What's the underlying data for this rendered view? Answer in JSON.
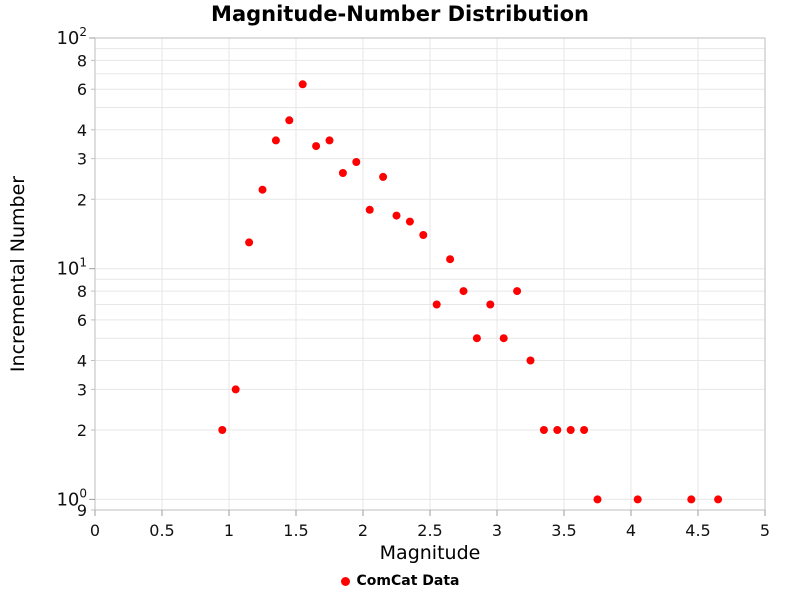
{
  "chart_data": {
    "type": "scatter",
    "title": "Magnitude-Number Distribution",
    "xlabel": "Magnitude",
    "ylabel": "Incremental Number",
    "legend": [
      {
        "label": "ComCat Data",
        "color": "#ff0000"
      }
    ],
    "legend_position": "bottom-center",
    "grid": true,
    "x_range": [
      0,
      5
    ],
    "y_range": [
      0.9,
      100
    ],
    "y_scale": "log",
    "x_ticks": [
      0,
      0.5,
      1,
      1.5,
      2,
      2.5,
      3,
      3.5,
      4,
      4.5,
      5
    ],
    "x_tick_labels": [
      "0",
      "0.5",
      "1",
      "1.5",
      "2",
      "2.5",
      "3",
      "3.5",
      "4",
      "4.5",
      "5"
    ],
    "y_major_ticks": [
      1,
      10,
      100
    ],
    "y_major_exponents": [
      "0",
      "1",
      "2"
    ],
    "y_minor_tick_values": [
      0.9,
      2,
      3,
      4,
      6,
      8,
      20,
      30,
      40,
      60,
      80
    ],
    "y_minor_tick_labels": [
      "9",
      "2",
      "3",
      "4",
      "6",
      "8",
      "2",
      "3",
      "4",
      "6",
      "8"
    ],
    "y_grid_ticks": [
      0.9,
      1,
      2,
      3,
      4,
      5,
      6,
      7,
      8,
      9,
      10,
      20,
      30,
      40,
      50,
      60,
      70,
      80,
      90,
      100
    ],
    "series": [
      {
        "name": "ComCat Data",
        "color": "#ff0000",
        "marker": "circle",
        "marker_radius": 4,
        "x": [
          0.95,
          1.05,
          1.15,
          1.25,
          1.35,
          1.45,
          1.55,
          1.65,
          1.75,
          1.85,
          1.95,
          2.05,
          2.15,
          2.25,
          2.35,
          2.45,
          2.55,
          2.65,
          2.75,
          2.85,
          2.95,
          3.05,
          3.15,
          3.25,
          3.35,
          3.45,
          3.55,
          3.65,
          3.75,
          4.05,
          4.45,
          4.65
        ],
        "y": [
          2,
          3,
          13,
          22,
          36,
          44,
          63,
          34,
          36,
          26,
          29,
          18,
          25,
          17,
          16,
          14,
          7,
          11,
          8,
          5,
          7,
          5,
          8,
          4,
          2,
          2,
          2,
          2,
          1,
          1,
          1,
          1
        ]
      }
    ]
  }
}
